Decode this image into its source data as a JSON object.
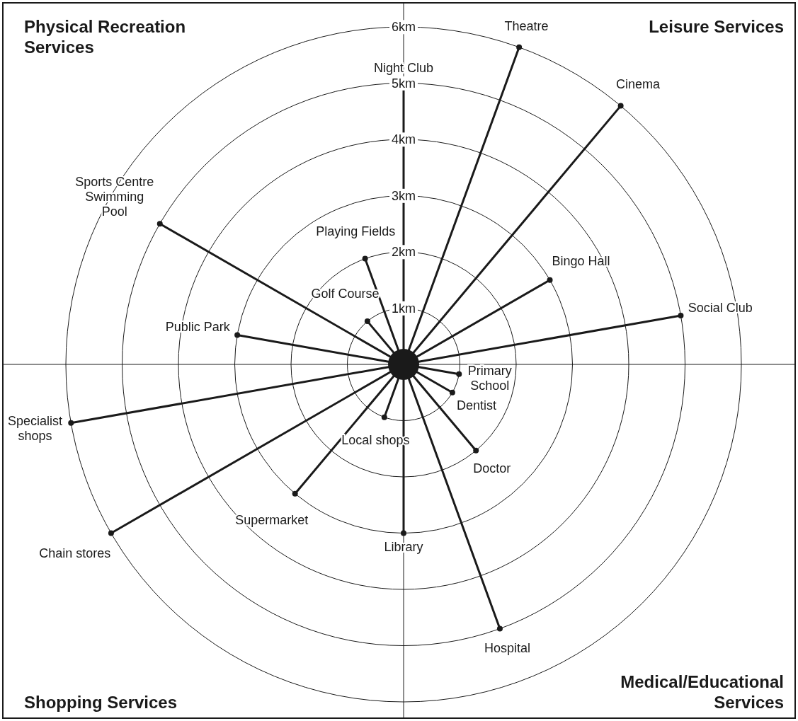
{
  "chart_data": {
    "type": "radar",
    "categories": [
      "Night Club",
      "Theatre",
      "Cinema",
      "Bingo Hall",
      "Social Club",
      "Primary School",
      "Dentist",
      "Doctor",
      "Hospital",
      "Library",
      "Local shops",
      "Supermarket",
      "Chain stores",
      "Specialist shops",
      "Public Park",
      "Sports Centre Swimming Pool",
      "Golf Course",
      "Playing Fields"
    ],
    "series": [
      {
        "color": "#1a1a1a",
        "values": [
          5,
          6,
          6,
          3,
          5,
          1,
          1,
          2,
          5,
          3,
          1,
          3,
          6,
          6,
          3,
          5,
          1,
          2
        ]
      }
    ],
    "ylim": [
      0,
      6
    ],
    "yticks": [
      {
        "value": 1,
        "label": "1km"
      },
      {
        "value": 2,
        "label": "2km"
      },
      {
        "value": 3,
        "label": "3km"
      },
      {
        "value": 4,
        "label": "4km"
      },
      {
        "value": 5,
        "label": "5km"
      },
      {
        "value": 6,
        "label": "6km"
      }
    ],
    "grid": true,
    "marker": "circle",
    "annotations": [
      "Physical Recreation Services",
      "Leisure Services",
      "Shopping Services",
      "Medical/Educational Services"
    ]
  }
}
